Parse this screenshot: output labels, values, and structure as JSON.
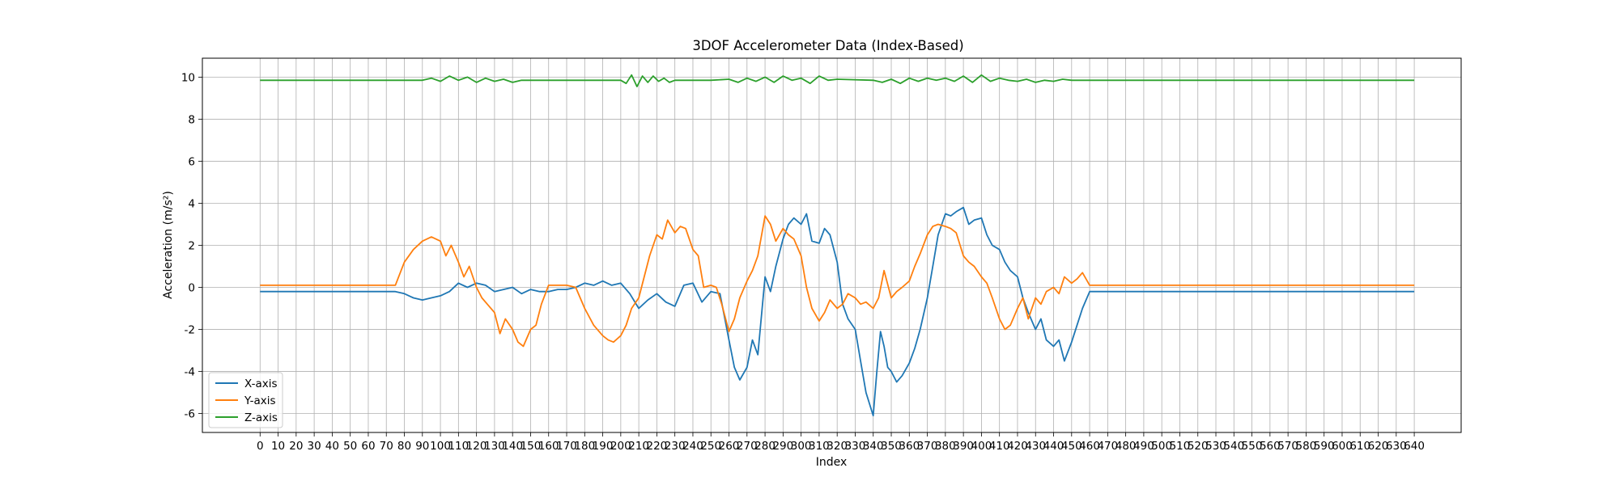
{
  "chart_data": {
    "type": "line",
    "title": "3DOF Accelerometer Data (Index-Based)",
    "xlabel": "Index",
    "ylabel": "Acceleration (m/s²)",
    "xlim": [
      -32,
      666
    ],
    "ylim": [
      -6.9,
      10.9
    ],
    "xticks": [
      0,
      10,
      20,
      30,
      40,
      50,
      60,
      70,
      80,
      90,
      100,
      110,
      120,
      130,
      140,
      150,
      160,
      170,
      180,
      190,
      200,
      210,
      220,
      230,
      240,
      250,
      260,
      270,
      280,
      290,
      300,
      310,
      320,
      330,
      340,
      350,
      360,
      370,
      380,
      390,
      400,
      410,
      420,
      430,
      440,
      450,
      460,
      470,
      480,
      490,
      500,
      510,
      520,
      530,
      540,
      550,
      560,
      570,
      580,
      590,
      600,
      610,
      620,
      630,
      640
    ],
    "yticks": [
      -6,
      -4,
      -2,
      0,
      2,
      4,
      6,
      8,
      10
    ],
    "grid": true,
    "legend_position": "lower-left",
    "series": [
      {
        "name": "X-axis",
        "color": "#1f77b4",
        "x": [
          0,
          75,
          80,
          85,
          90,
          95,
          100,
          105,
          110,
          115,
          120,
          125,
          130,
          135,
          140,
          145,
          150,
          155,
          160,
          165,
          170,
          175,
          180,
          185,
          190,
          195,
          200,
          205,
          210,
          215,
          220,
          225,
          230,
          235,
          240,
          245,
          250,
          255,
          260,
          263,
          266,
          270,
          273,
          276,
          280,
          283,
          286,
          290,
          293,
          296,
          300,
          303,
          306,
          310,
          313,
          316,
          320,
          323,
          326,
          330,
          333,
          336,
          340,
          342,
          344,
          346,
          348,
          350,
          353,
          356,
          360,
          363,
          366,
          370,
          373,
          376,
          380,
          383,
          386,
          390,
          393,
          396,
          400,
          403,
          406,
          410,
          413,
          416,
          420,
          423,
          426,
          430,
          433,
          436,
          440,
          443,
          446,
          450,
          453,
          456,
          460,
          640
        ],
        "y": [
          -0.2,
          -0.2,
          -0.3,
          -0.5,
          -0.6,
          -0.5,
          -0.4,
          -0.2,
          0.2,
          0.0,
          0.2,
          0.1,
          -0.2,
          -0.1,
          0.0,
          -0.3,
          -0.1,
          -0.2,
          -0.2,
          -0.1,
          -0.1,
          0.0,
          0.2,
          0.1,
          0.3,
          0.1,
          0.2,
          -0.3,
          -1.0,
          -0.6,
          -0.3,
          -0.7,
          -0.9,
          0.1,
          0.2,
          -0.7,
          -0.2,
          -0.3,
          -2.5,
          -3.8,
          -4.4,
          -3.8,
          -2.5,
          -3.2,
          0.5,
          -0.2,
          1.0,
          2.3,
          3.0,
          3.3,
          3.0,
          3.5,
          2.2,
          2.1,
          2.8,
          2.5,
          1.2,
          -0.8,
          -1.5,
          -2.0,
          -3.5,
          -5.0,
          -6.1,
          -4.0,
          -2.1,
          -2.8,
          -3.8,
          -4.0,
          -4.5,
          -4.2,
          -3.6,
          -2.9,
          -2.0,
          -0.5,
          1.0,
          2.5,
          3.5,
          3.4,
          3.6,
          3.8,
          3.0,
          3.2,
          3.3,
          2.5,
          2.0,
          1.8,
          1.2,
          0.8,
          0.5,
          -0.5,
          -1.2,
          -2.0,
          -1.5,
          -2.5,
          -2.8,
          -2.5,
          -3.5,
          -2.6,
          -1.8,
          -1.0,
          -0.2,
          -0.2
        ]
      },
      {
        "name": "Y-axis",
        "color": "#ff7f0e",
        "x": [
          0,
          75,
          80,
          85,
          90,
          95,
          100,
          103,
          106,
          110,
          113,
          116,
          120,
          123,
          126,
          130,
          133,
          136,
          140,
          143,
          146,
          150,
          153,
          156,
          160,
          165,
          170,
          175,
          180,
          185,
          190,
          193,
          196,
          200,
          203,
          206,
          210,
          213,
          216,
          220,
          223,
          226,
          230,
          233,
          236,
          240,
          243,
          246,
          250,
          253,
          256,
          260,
          263,
          266,
          270,
          273,
          276,
          280,
          283,
          286,
          290,
          293,
          296,
          300,
          303,
          306,
          310,
          313,
          316,
          320,
          323,
          326,
          330,
          333,
          336,
          340,
          343,
          346,
          350,
          353,
          356,
          360,
          363,
          366,
          370,
          373,
          376,
          380,
          383,
          386,
          390,
          393,
          396,
          400,
          403,
          406,
          410,
          413,
          416,
          420,
          423,
          426,
          430,
          433,
          436,
          440,
          443,
          446,
          450,
          453,
          456,
          460,
          640
        ],
        "y": [
          0.1,
          0.1,
          1.2,
          1.8,
          2.2,
          2.4,
          2.2,
          1.5,
          2.0,
          1.2,
          0.5,
          1.0,
          0.0,
          -0.5,
          -0.8,
          -1.2,
          -2.2,
          -1.5,
          -2.0,
          -2.6,
          -2.8,
          -2.0,
          -1.8,
          -0.8,
          0.1,
          0.1,
          0.1,
          0.0,
          -1.0,
          -1.8,
          -2.3,
          -2.5,
          -2.6,
          -2.3,
          -1.8,
          -1.0,
          -0.5,
          0.5,
          1.5,
          2.5,
          2.3,
          3.2,
          2.6,
          2.9,
          2.8,
          1.8,
          1.5,
          0.0,
          0.1,
          0.0,
          -0.8,
          -2.1,
          -1.5,
          -0.5,
          0.3,
          0.8,
          1.5,
          3.4,
          3.0,
          2.2,
          2.8,
          2.5,
          2.3,
          1.5,
          0.0,
          -1.0,
          -1.6,
          -1.2,
          -0.6,
          -1.0,
          -0.8,
          -0.3,
          -0.5,
          -0.8,
          -0.7,
          -1.0,
          -0.5,
          0.8,
          -0.5,
          -0.2,
          0.0,
          0.3,
          1.0,
          1.6,
          2.5,
          2.9,
          3.0,
          2.9,
          2.8,
          2.6,
          1.5,
          1.2,
          1.0,
          0.5,
          0.2,
          -0.5,
          -1.5,
          -2.0,
          -1.8,
          -1.0,
          -0.5,
          -1.5,
          -0.5,
          -0.8,
          -0.2,
          0.0,
          -0.3,
          0.5,
          0.2,
          0.4,
          0.7,
          0.1,
          0.1
        ]
      },
      {
        "name": "Z-axis",
        "color": "#2ca02c",
        "x": [
          0,
          90,
          95,
          100,
          105,
          110,
          115,
          120,
          125,
          130,
          135,
          140,
          145,
          150,
          200,
          203,
          206,
          209,
          212,
          215,
          218,
          221,
          224,
          227,
          230,
          240,
          250,
          260,
          265,
          270,
          275,
          280,
          285,
          290,
          295,
          300,
          305,
          310,
          315,
          320,
          340,
          345,
          350,
          355,
          360,
          365,
          370,
          375,
          380,
          385,
          390,
          395,
          400,
          405,
          410,
          415,
          420,
          425,
          430,
          435,
          440,
          445,
          450,
          640
        ],
        "y": [
          9.85,
          9.85,
          9.95,
          9.8,
          10.05,
          9.85,
          10.0,
          9.75,
          9.95,
          9.8,
          9.9,
          9.75,
          9.85,
          9.85,
          9.85,
          9.7,
          10.1,
          9.55,
          10.05,
          9.75,
          10.05,
          9.8,
          9.95,
          9.75,
          9.85,
          9.85,
          9.85,
          9.9,
          9.75,
          9.95,
          9.8,
          10.0,
          9.75,
          10.05,
          9.85,
          9.95,
          9.7,
          10.05,
          9.85,
          9.9,
          9.85,
          9.75,
          9.9,
          9.7,
          9.95,
          9.8,
          9.95,
          9.85,
          9.95,
          9.8,
          10.05,
          9.75,
          10.1,
          9.8,
          9.95,
          9.85,
          9.8,
          9.9,
          9.75,
          9.85,
          9.8,
          9.9,
          9.85,
          9.85
        ]
      }
    ]
  }
}
